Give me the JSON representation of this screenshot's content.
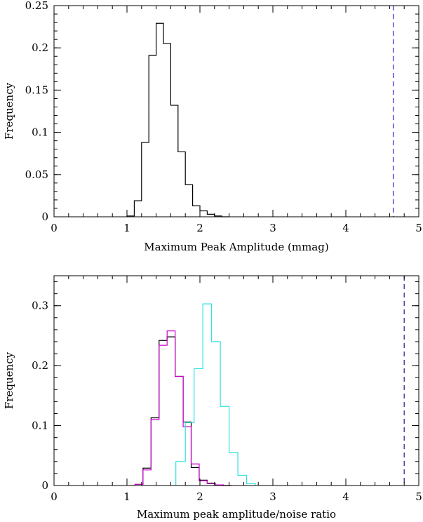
{
  "chart_data": [
    {
      "type": "step",
      "xlabel": "Maximum Peak Amplitude (mmag)",
      "ylabel": "Frequency",
      "xlim": [
        0,
        5
      ],
      "ylim": [
        0,
        0.25
      ],
      "xticks": [
        0,
        1,
        2,
        3,
        4,
        5
      ],
      "xtick_labels": [
        "0",
        "1",
        "2",
        "3",
        "4",
        "5"
      ],
      "yticks": [
        0,
        0.05,
        0.1,
        0.15,
        0.2,
        0.25
      ],
      "ytick_labels": [
        "0",
        "0.05",
        "0.1",
        "0.15",
        "0.2",
        "0.25"
      ],
      "minor_x": 0.2,
      "minor_y": 0.01,
      "bin_width": 0.1,
      "series": [
        {
          "color": "#000000",
          "bin_edges": [
            1.0,
            1.1,
            1.2,
            1.3,
            1.4,
            1.5,
            1.6,
            1.7,
            1.8,
            1.9,
            2.0,
            2.1,
            2.2,
            2.3,
            2.4
          ],
          "values": [
            0.001,
            0.019,
            0.088,
            0.191,
            0.229,
            0.205,
            0.132,
            0.077,
            0.038,
            0.013,
            0.007,
            0.003,
            0.001,
            0.0
          ]
        }
      ],
      "vlines": [
        {
          "x": 4.65,
          "color": "#3b3bd8",
          "style": "dashed"
        }
      ]
    },
    {
      "type": "step",
      "xlabel": "Maximum peak amplitude/noise ratio",
      "ylabel": "Frequency",
      "xlim": [
        0,
        5
      ],
      "ylim": [
        0,
        0.35
      ],
      "xticks": [
        0,
        1,
        2,
        3,
        4,
        5
      ],
      "xtick_labels": [
        "0",
        "1",
        "2",
        "3",
        "4",
        "5"
      ],
      "yticks": [
        0,
        0.1,
        0.2,
        0.3
      ],
      "ytick_labels": [
        "0",
        "0.1",
        "0.2",
        "0.3"
      ],
      "minor_x": 0.2,
      "minor_y": 0.02,
      "series": [
        {
          "color": "#000000",
          "bin_edges": [
            1.11,
            1.22,
            1.33,
            1.44,
            1.55,
            1.66,
            1.77,
            1.88,
            1.99,
            2.1,
            2.21,
            2.32,
            2.43
          ],
          "values": [
            0.002,
            0.029,
            0.113,
            0.242,
            0.248,
            0.182,
            0.106,
            0.03,
            0.009,
            0.004,
            0.001,
            0.0
          ]
        },
        {
          "color": "#cc00cc",
          "bin_edges": [
            1.11,
            1.22,
            1.33,
            1.44,
            1.55,
            1.66,
            1.77,
            1.88,
            1.99,
            2.1,
            2.21,
            2.32,
            2.43
          ],
          "values": [
            0.002,
            0.026,
            0.11,
            0.234,
            0.258,
            0.182,
            0.098,
            0.036,
            0.008,
            0.003,
            0.001,
            0.0
          ]
        },
        {
          "color": "#33e0e0",
          "bin_edges": [
            1.67,
            1.8,
            1.92,
            2.04,
            2.16,
            2.28,
            2.4,
            2.52,
            2.64,
            2.76
          ],
          "values": [
            0.04,
            0.105,
            0.195,
            0.303,
            0.24,
            0.132,
            0.055,
            0.017,
            0.003
          ]
        }
      ],
      "vlines": [
        {
          "x": 4.8,
          "color": "#2a2a9c",
          "style": "dashed"
        }
      ]
    }
  ]
}
